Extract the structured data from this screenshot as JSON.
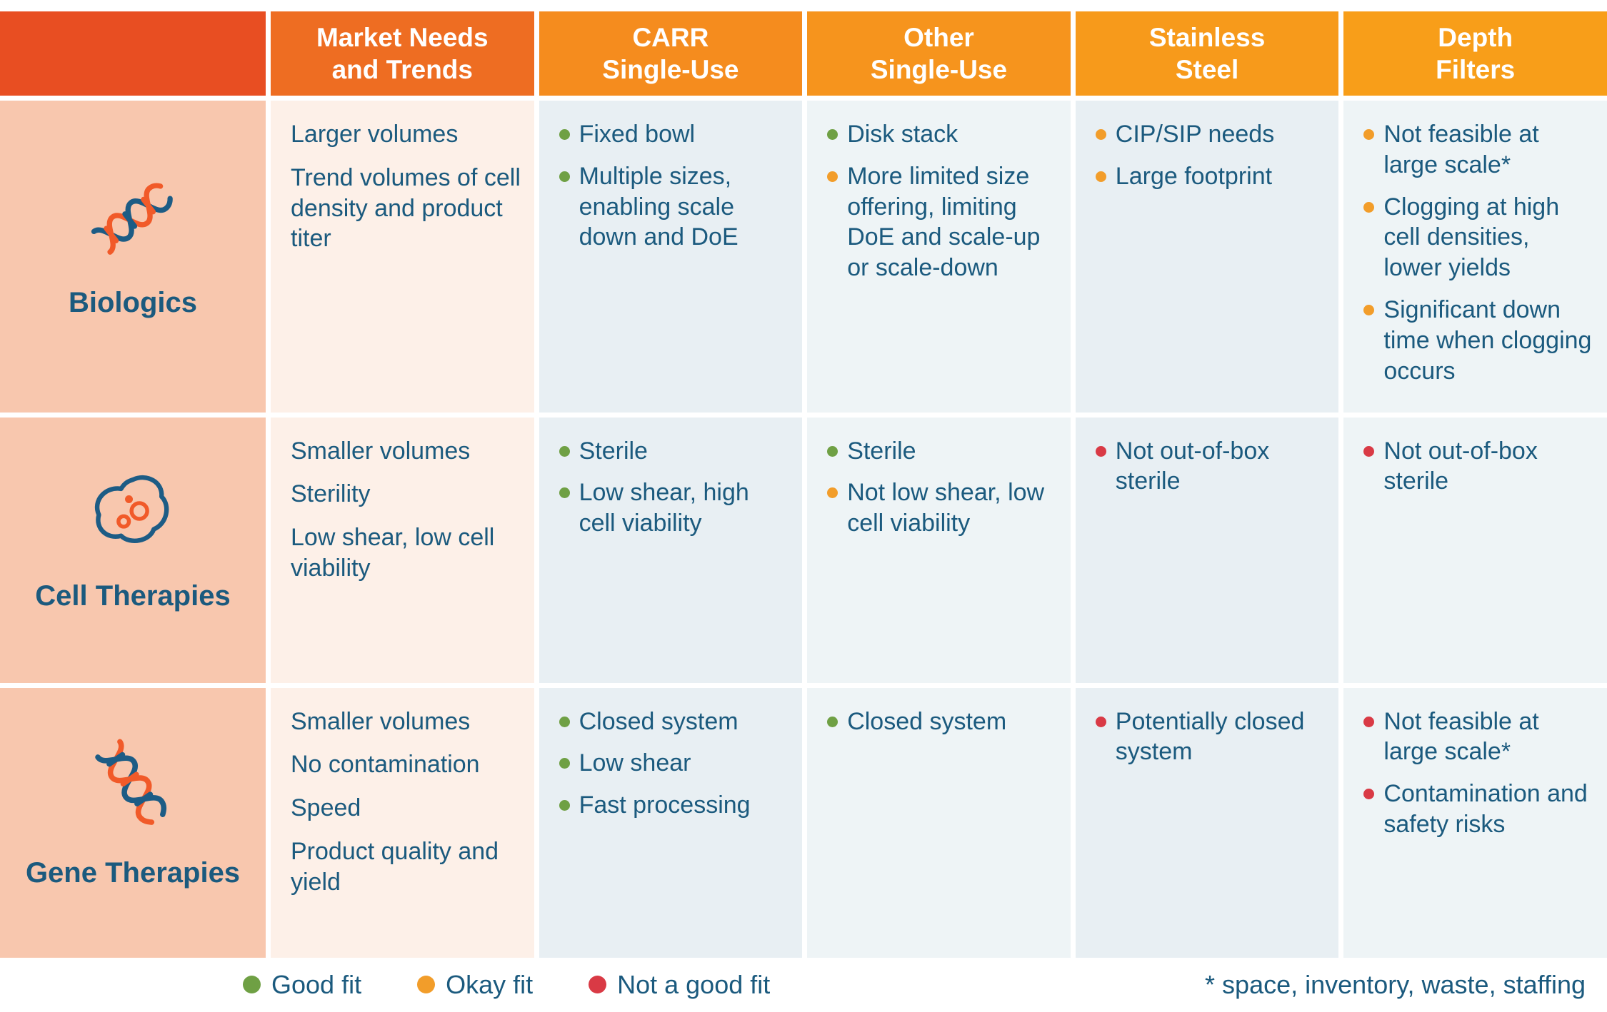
{
  "colors": {
    "header": [
      "#e84e22",
      "#ee6d22",
      "#f58c1e",
      "#f6941d",
      "#f79a1b",
      "#f89e19"
    ],
    "row_label_bg": "#f8c7ae",
    "needs_bg": "#fdf0e8",
    "value_bg": "#e8eff3",
    "value_bg_alt": "#eef4f6",
    "text": "#1b5a7e",
    "fit": {
      "good": "#6fa044",
      "okay": "#f29d2a",
      "bad": "#d93a45"
    }
  },
  "chart_data": {
    "type": "table",
    "columns": [
      "",
      "Market Needs\nand Trends",
      "CARR\nSingle-Use",
      "Other\nSingle-Use",
      "Stainless\nSteel",
      "Depth\nFilters"
    ],
    "rows": [
      {
        "label": "Biologics",
        "icon": "dna-diagonal-icon",
        "needs": [
          "Larger volumes",
          "Trend volumes of cell density and product titer"
        ],
        "cells": [
          [
            {
              "fit": "good",
              "text": "Fixed bowl"
            },
            {
              "fit": "good",
              "text": "Multiple sizes, enabling scale down and DoE"
            }
          ],
          [
            {
              "fit": "good",
              "text": "Disk stack"
            },
            {
              "fit": "okay",
              "text": "More limited size offering, limiting DoE and scale-up or scale-down"
            }
          ],
          [
            {
              "fit": "okay",
              "text": "CIP/SIP needs"
            },
            {
              "fit": "okay",
              "text": "Large footprint"
            }
          ],
          [
            {
              "fit": "okay",
              "text": "Not feasible at large scale*"
            },
            {
              "fit": "okay",
              "text": "Clogging at high cell densities, lower yields"
            },
            {
              "fit": "okay",
              "text": "Significant down time when clogging occurs"
            }
          ]
        ]
      },
      {
        "label": "Cell Therapies",
        "icon": "cell-icon",
        "needs": [
          "Smaller volumes",
          "Sterility",
          "Low shear, low cell viability"
        ],
        "cells": [
          [
            {
              "fit": "good",
              "text": "Sterile"
            },
            {
              "fit": "good",
              "text": "Low shear, high cell viability"
            }
          ],
          [
            {
              "fit": "good",
              "text": "Sterile"
            },
            {
              "fit": "okay",
              "text": "Not low shear, low cell viability"
            }
          ],
          [
            {
              "fit": "bad",
              "text": "Not out-of-box sterile"
            }
          ],
          [
            {
              "fit": "bad",
              "text": "Not out-of-box sterile"
            }
          ]
        ]
      },
      {
        "label": "Gene Therapies",
        "icon": "dna-vertical-icon",
        "needs": [
          "Smaller volumes",
          "No contamination",
          "Speed",
          "Product quality and yield"
        ],
        "cells": [
          [
            {
              "fit": "good",
              "text": "Closed system"
            },
            {
              "fit": "good",
              "text": "Low shear"
            },
            {
              "fit": "good",
              "text": "Fast processing"
            }
          ],
          [
            {
              "fit": "good",
              "text": "Closed system"
            }
          ],
          [
            {
              "fit": "bad",
              "text": "Potentially closed system"
            }
          ],
          [
            {
              "fit": "bad",
              "text": "Not feasible at large scale*"
            },
            {
              "fit": "bad",
              "text": "Contamination and safety risks"
            }
          ]
        ]
      }
    ],
    "legend": [
      {
        "fit": "good",
        "label": "Good fit"
      },
      {
        "fit": "okay",
        "label": "Okay fit"
      },
      {
        "fit": "bad",
        "label": "Not a good fit"
      }
    ],
    "footnote": "* space, inventory, waste, staffing"
  }
}
